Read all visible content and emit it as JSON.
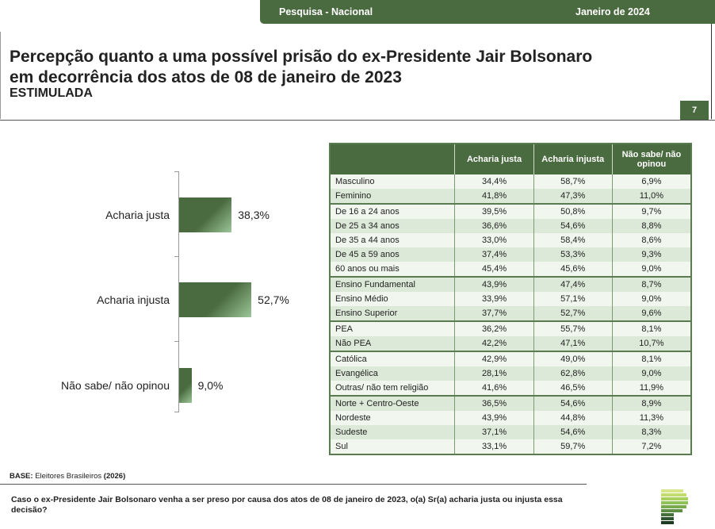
{
  "header": {
    "survey": "Pesquisa - Nacional",
    "date": "Janeiro de 2024"
  },
  "title_line1": "Percepção quanto a uma possível prisão do ex-Presidente Jair Bolsonaro",
  "title_line2": "em decorrência dos atos de 08 de janeiro de 2023",
  "subtitle": "ESTIMULADA",
  "page_number": "7",
  "chart_data": {
    "type": "bar",
    "orientation": "horizontal",
    "categories": [
      "Acharia justa",
      "Acharia injusta",
      "Não sabe/ não opinou"
    ],
    "values": [
      38.3,
      52.7,
      9.0
    ],
    "value_labels": [
      "38,3%",
      "52,7%",
      "9,0%"
    ],
    "bar_color": "#4a6a3f"
  },
  "table": {
    "headers": [
      "",
      "Acharia justa",
      "Acharia injusta",
      "Não sabe/ não opinou"
    ],
    "rows": [
      {
        "label": "Masculino",
        "v": [
          "34,4%",
          "58,7%",
          "6,9%"
        ],
        "group_start": false
      },
      {
        "label": "Feminino",
        "v": [
          "41,8%",
          "47,3%",
          "11,0%"
        ],
        "group_start": false
      },
      {
        "label": "De 16 a 24 anos",
        "v": [
          "39,5%",
          "50,8%",
          "9,7%"
        ],
        "group_start": true
      },
      {
        "label": "De 25 a 34 anos",
        "v": [
          "36,6%",
          "54,6%",
          "8,8%"
        ],
        "group_start": false
      },
      {
        "label": "De 35 a 44 anos",
        "v": [
          "33,0%",
          "58,4%",
          "8,6%"
        ],
        "group_start": false
      },
      {
        "label": "De 45 a 59 anos",
        "v": [
          "37,4%",
          "53,3%",
          "9,3%"
        ],
        "group_start": false
      },
      {
        "label": "60 anos ou mais",
        "v": [
          "45,4%",
          "45,6%",
          "9,0%"
        ],
        "group_start": false
      },
      {
        "label": "Ensino Fundamental",
        "v": [
          "43,9%",
          "47,4%",
          "8,7%"
        ],
        "group_start": true
      },
      {
        "label": "Ensino Médio",
        "v": [
          "33,9%",
          "57,1%",
          "9,0%"
        ],
        "group_start": false
      },
      {
        "label": "Ensino Superior",
        "v": [
          "37,7%",
          "52,7%",
          "9,6%"
        ],
        "group_start": false
      },
      {
        "label": "PEA",
        "v": [
          "36,2%",
          "55,7%",
          "8,1%"
        ],
        "group_start": true
      },
      {
        "label": "Não PEA",
        "v": [
          "42,2%",
          "47,1%",
          "10,7%"
        ],
        "group_start": false
      },
      {
        "label": "Católica",
        "v": [
          "42,9%",
          "49,0%",
          "8,1%"
        ],
        "group_start": true
      },
      {
        "label": "Evangélica",
        "v": [
          "28,1%",
          "62,8%",
          "9,0%"
        ],
        "group_start": false
      },
      {
        "label": "Outras/ não tem religião",
        "v": [
          "41,6%",
          "46,5%",
          "11,9%"
        ],
        "group_start": false
      },
      {
        "label": "Norte + Centro-Oeste",
        "v": [
          "36,5%",
          "54,6%",
          "8,9%"
        ],
        "group_start": true
      },
      {
        "label": "Nordeste",
        "v": [
          "43,9%",
          "44,8%",
          "11,3%"
        ],
        "group_start": false
      },
      {
        "label": "Sudeste",
        "v": [
          "37,1%",
          "54,6%",
          "8,3%"
        ],
        "group_start": false
      },
      {
        "label": "Sul",
        "v": [
          "33,1%",
          "59,7%",
          "7,2%"
        ],
        "group_start": false
      }
    ]
  },
  "base": {
    "label": "BASE:",
    "text": " Eleitores Brasileiros ",
    "count": "(2026)"
  },
  "question": "Caso o ex-Presidente Jair Bolsonaro venha a ser preso por causa dos atos de 08 de janeiro de 2023, o(a) Sr(a) acharia justa ou injusta essa decisão?"
}
